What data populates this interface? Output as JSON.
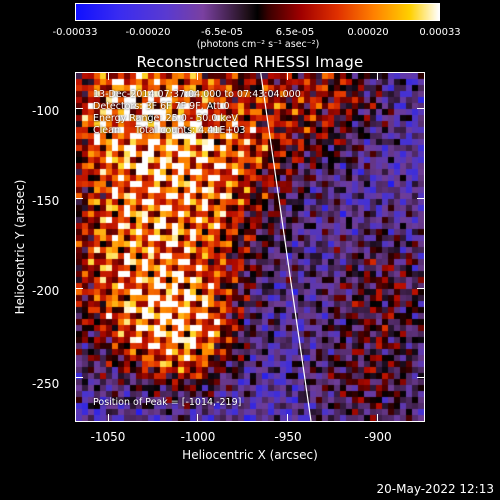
{
  "colorbar": {
    "ticks": [
      "-0.00033",
      "-0.00020",
      "-6.5e-05",
      "6.5e-05",
      "0.00020",
      "0.00033"
    ],
    "units": "(photons cm⁻² s⁻¹ asec⁻²)"
  },
  "title": "Reconstructed RHESSI Image",
  "info": {
    "time": "13-Dec-2014 07:37:04.000 to 07:43:04.000",
    "detectors": "Detectors: 3F 6F 7F 9F, Att 0",
    "energy": "Energy Range: 25.0 - 50.0 keV",
    "clean": "Clean     Total counts: 4.41E+03",
    "peak": "Position of Peak = [-1014,-219]"
  },
  "axes": {
    "xlabel": "Heliocentric X (arcsec)",
    "ylabel": "Heliocentric Y (arcsec)",
    "xticks": [
      "-1050",
      "-1000",
      "-950",
      "-900"
    ],
    "yticks": [
      "-100",
      "-150",
      "-200",
      "-250"
    ]
  },
  "timestamp": "20-May-2022 12:13",
  "chart_data": {
    "type": "heatmap",
    "title": "Reconstructed RHESSI Image",
    "xlabel": "Heliocentric X (arcsec)",
    "ylabel": "Heliocentric Y (arcsec)",
    "xlim": [
      -1068,
      -874
    ],
    "ylim": [
      -274,
      -80
    ],
    "xticks": [
      -1050,
      -1000,
      -950,
      -900
    ],
    "yticks": [
      -100,
      -150,
      -200,
      -250
    ],
    "colorbar_range": [
      -0.00033,
      0.00033
    ],
    "peak_position": [
      -1014,
      -219
    ],
    "limb_line": [
      [
        -965,
        -80
      ],
      [
        -937,
        -274
      ]
    ],
    "colors": {
      "negative": "#1010ff",
      "zero": "#000000",
      "positive_mid": "#e03000",
      "positive_high": "#ffffff"
    }
  }
}
